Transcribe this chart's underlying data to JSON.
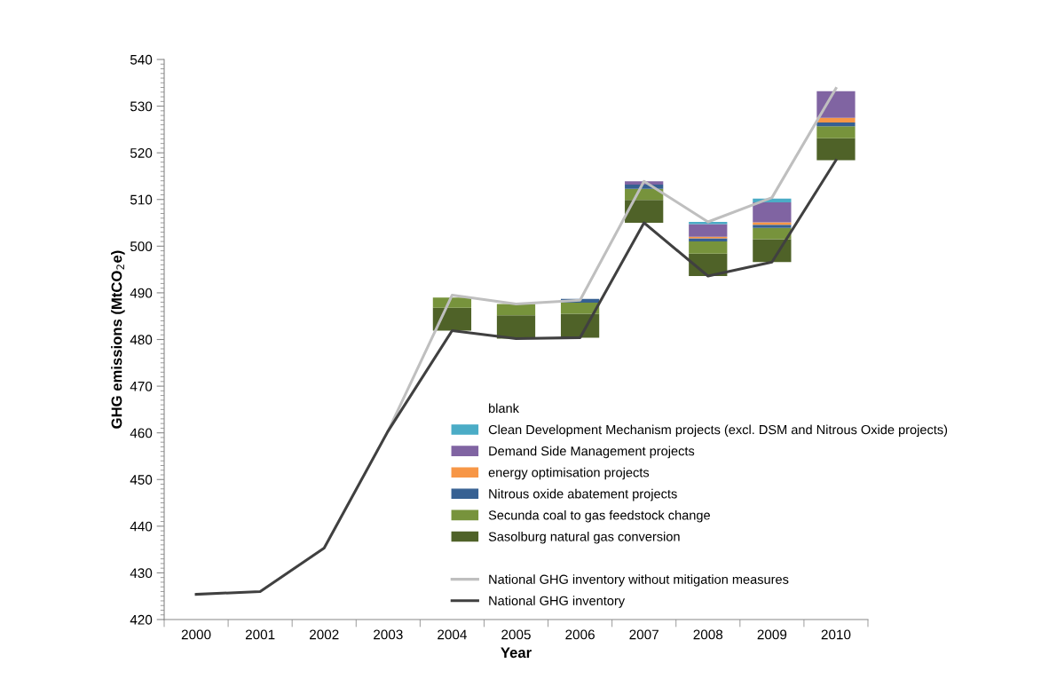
{
  "chart_data": {
    "type": "bar",
    "xlabel": "Year",
    "ylabel": "GHG emissions (MtCO$_{2}$e)",
    "categories": [
      "2000",
      "2001",
      "2002",
      "2003",
      "2004",
      "2005",
      "2006",
      "2007",
      "2008",
      "2009",
      "2010"
    ],
    "ylim": [
      420,
      540
    ],
    "yticks": [
      420,
      430,
      440,
      450,
      460,
      470,
      480,
      490,
      500,
      510,
      520,
      530,
      540
    ],
    "legend": "bottom right",
    "grid": false,
    "annotations": [
      "blank"
    ],
    "series": [
      {
        "name": "Sasolburg natural gas conversion",
        "color": "#4f6228",
        "base": [
          null,
          null,
          null,
          null,
          481.9,
          480.2,
          480.4,
          505.0,
          493.6,
          496.6,
          518.4
        ],
        "values": [
          null,
          null,
          null,
          null,
          4.9,
          5.0,
          5.1,
          4.9,
          4.8,
          4.9,
          4.7
        ]
      },
      {
        "name": "Secunda coal to gas feedstock change",
        "color": "#77933c",
        "base": [
          null,
          null,
          null,
          null,
          486.8,
          485.2,
          485.5,
          509.9,
          498.4,
          501.5,
          523.1
        ],
        "values": [
          null,
          null,
          null,
          null,
          2.2,
          2.4,
          2.4,
          2.4,
          2.6,
          2.4,
          2.6
        ]
      },
      {
        "name": "Nitrous oxide abatement projects",
        "color": "#366092",
        "base": [
          null,
          null,
          null,
          null,
          null,
          null,
          487.9,
          512.3,
          501.0,
          503.9,
          525.7
        ],
        "values": [
          null,
          null,
          null,
          null,
          null,
          null,
          0.8,
          0.9,
          0.7,
          0.7,
          0.8
        ]
      },
      {
        "name": "energy optimisation projects",
        "color": "#f79646",
        "base": [
          null,
          null,
          null,
          null,
          null,
          null,
          null,
          null,
          501.7,
          504.6,
          526.5
        ],
        "values": [
          null,
          null,
          null,
          null,
          null,
          null,
          null,
          null,
          0.3,
          0.5,
          1.0
        ]
      },
      {
        "name": "Demand Side Management projects",
        "color": "#8064a2",
        "base": [
          null,
          null,
          null,
          null,
          null,
          null,
          null,
          513.2,
          502.0,
          505.1,
          527.5
        ],
        "values": [
          null,
          null,
          null,
          null,
          null,
          null,
          null,
          0.7,
          2.7,
          4.3,
          5.7
        ]
      },
      {
        "name": "Clean Development Mechanism projects (excl. DSM and Nitrous Oxide projects)",
        "color": "#4bacc6",
        "base": [
          null,
          null,
          null,
          null,
          null,
          null,
          null,
          null,
          504.7,
          509.4,
          null
        ],
        "values": [
          null,
          null,
          null,
          null,
          null,
          null,
          null,
          null,
          0.5,
          0.8,
          null
        ]
      },
      {
        "name": "National GHG inventory without mitigation measures",
        "type": "line",
        "color": "#bfbfbf",
        "values": [
          null,
          null,
          null,
          460.4,
          489.5,
          487.6,
          488.4,
          513.9,
          505.2,
          510.4,
          533.8
        ]
      },
      {
        "name": "National GHG inventory",
        "type": "line",
        "color": "#404040",
        "values": [
          425.4,
          426.0,
          435.3,
          460.4,
          481.9,
          480.2,
          480.4,
          505.0,
          493.6,
          496.6,
          518.4
        ]
      }
    ]
  }
}
